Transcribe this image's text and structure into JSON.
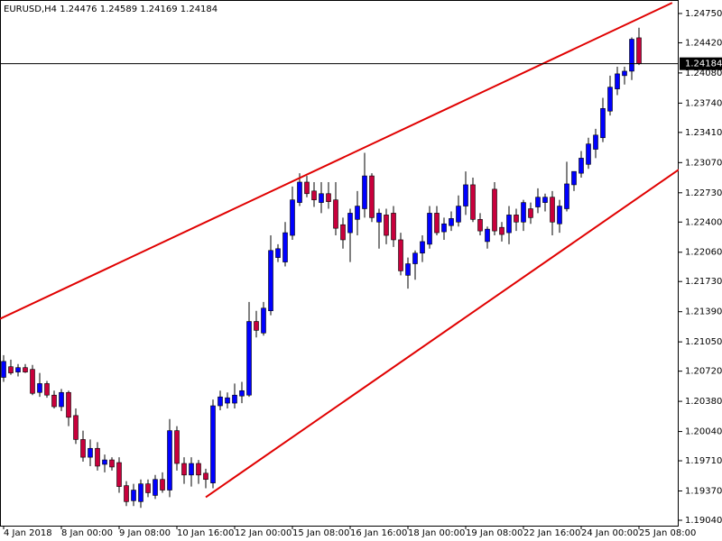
{
  "chart_data": {
    "type": "candlestick",
    "title": "EURUSD,H4 1.24476 1.24589 1.24169 1.24184",
    "categories": [
      "4 Jan 2018",
      null,
      null,
      null,
      null,
      null,
      null,
      null,
      "8 Jan 00:00",
      null,
      null,
      null,
      null,
      null,
      null,
      null,
      "9 Jan 08:00",
      null,
      null,
      null,
      null,
      null,
      null,
      null,
      "10 Jan 16:00",
      null,
      null,
      null,
      null,
      null,
      null,
      null,
      "12 Jan 00:00",
      null,
      null,
      null,
      null,
      null,
      null,
      null,
      "15 Jan 08:00",
      null,
      null,
      null,
      null,
      null,
      null,
      null,
      "16 Jan 16:00",
      null,
      null,
      null,
      null,
      null,
      null,
      null,
      "18 Jan 00:00",
      null,
      null,
      null,
      null,
      null,
      null,
      null,
      "19 Jan 08:00",
      null,
      null,
      null,
      null,
      null,
      null,
      null,
      "22 Jan 16:00",
      null,
      null,
      null,
      null,
      null,
      null,
      null,
      "24 Jan 00:00",
      null,
      null,
      null,
      null,
      null,
      null,
      null,
      "25 Jan 08:00"
    ],
    "open": [
      1.2065,
      1.2077,
      1.2071,
      1.2076,
      1.2074,
      1.2048,
      1.2058,
      1.2045,
      1.2032,
      1.2048,
      1.2022,
      1.1995,
      1.1975,
      1.1985,
      1.1967,
      1.1972,
      1.1969,
      1.1943,
      1.1926,
      1.1925,
      1.1945,
      1.1932,
      1.195,
      1.1938,
      1.2005,
      1.1968,
      1.1955,
      1.1968,
      1.1957,
      1.1946,
      1.2033,
      1.2036,
      1.2036,
      1.2044,
      1.2045,
      1.2128,
      1.2115,
      1.214,
      1.22,
      1.2195,
      1.2225,
      1.2262,
      1.2285,
      1.2275,
      1.2262,
      1.2272,
      1.2265,
      1.2237,
      1.2228,
      1.2243,
      1.2255,
      1.2292,
      1.224,
      1.2248,
      1.225,
      1.222,
      1.218,
      1.2193,
      1.2205,
      1.2215,
      1.225,
      1.2229,
      1.2236,
      1.224,
      1.2258,
      1.2282,
      1.2243,
      1.2218,
      1.2277,
      1.2234,
      1.2228,
      1.2248,
      1.224,
      1.2255,
      1.2257,
      1.2262,
      1.2268,
      1.2238,
      1.2255,
      1.2282,
      1.2295,
      1.2305,
      1.2322,
      1.2335,
      1.2365,
      1.239,
      1.2405,
      1.241,
      1.24476
    ],
    "high": [
      1.209,
      1.2085,
      1.208,
      1.208,
      1.2079,
      1.207,
      1.2061,
      1.205,
      1.2052,
      1.205,
      1.203,
      1.2005,
      1.1995,
      1.1992,
      1.1978,
      1.1975,
      1.1975,
      1.1948,
      1.1945,
      1.195,
      1.195,
      1.1955,
      1.1958,
      1.2018,
      1.201,
      1.1975,
      1.1975,
      1.1972,
      1.1962,
      1.204,
      1.205,
      1.2048,
      1.2058,
      1.206,
      1.215,
      1.214,
      1.215,
      1.2225,
      1.2215,
      1.224,
      1.228,
      1.2295,
      1.2292,
      1.2285,
      1.2285,
      1.2285,
      1.2285,
      1.2245,
      1.2255,
      1.2275,
      1.2318,
      1.2295,
      1.2255,
      1.2255,
      1.2258,
      1.2228,
      1.22,
      1.2208,
      1.2225,
      1.2258,
      1.2258,
      1.2245,
      1.2252,
      1.227,
      1.2297,
      1.229,
      1.225,
      1.2235,
      1.2285,
      1.224,
      1.2258,
      1.2255,
      1.2265,
      1.2262,
      1.2278,
      1.2272,
      1.2275,
      1.2265,
      1.2308,
      1.2295,
      1.232,
      1.2335,
      1.2345,
      1.238,
      1.2405,
      1.2415,
      1.2415,
      1.2448,
      1.24589
    ],
    "low": [
      1.206,
      1.2068,
      1.2066,
      1.207,
      1.2045,
      1.2043,
      1.2042,
      1.203,
      1.2027,
      1.201,
      1.199,
      1.197,
      1.1965,
      1.196,
      1.1958,
      1.196,
      1.1935,
      1.192,
      1.192,
      1.1918,
      1.193,
      1.1928,
      1.1935,
      1.193,
      1.196,
      1.1945,
      1.1942,
      1.1945,
      1.194,
      1.194,
      1.2028,
      1.203,
      1.203,
      1.2036,
      1.2043,
      1.211,
      1.2112,
      1.2135,
      1.2195,
      1.219,
      1.222,
      1.2258,
      1.2268,
      1.2257,
      1.225,
      1.2255,
      1.2225,
      1.221,
      1.2195,
      1.2225,
      1.2245,
      1.224,
      1.221,
      1.2215,
      1.2212,
      1.218,
      1.2165,
      1.2175,
      1.2195,
      1.221,
      1.2225,
      1.222,
      1.223,
      1.2235,
      1.2248,
      1.224,
      1.2225,
      1.221,
      1.2225,
      1.2218,
      1.2215,
      1.223,
      1.223,
      1.2238,
      1.225,
      1.2252,
      1.2225,
      1.2228,
      1.2252,
      1.2275,
      1.229,
      1.23,
      1.2312,
      1.233,
      1.236,
      1.2383,
      1.2395,
      1.24,
      1.24169
    ],
    "close": [
      1.2083,
      1.207,
      1.2076,
      1.2071,
      1.2047,
      1.2058,
      1.2045,
      1.2032,
      1.2048,
      1.202,
      1.1995,
      1.1975,
      1.1985,
      1.1965,
      1.1972,
      1.1964,
      1.1942,
      1.1925,
      1.1938,
      1.1945,
      1.1935,
      1.195,
      1.1938,
      1.2005,
      1.1968,
      1.1955,
      1.1968,
      1.1955,
      1.195,
      1.2033,
      1.2043,
      1.2042,
      1.2045,
      1.205,
      1.2128,
      1.2118,
      1.2143,
      1.2208,
      1.221,
      1.2228,
      1.2265,
      1.2285,
      1.2272,
      1.2265,
      1.2272,
      1.2263,
      1.2233,
      1.222,
      1.225,
      1.2258,
      1.2292,
      1.2245,
      1.225,
      1.2225,
      1.222,
      1.2185,
      1.2193,
      1.2205,
      1.2218,
      1.225,
      1.2228,
      1.2238,
      1.2244,
      1.2258,
      1.2282,
      1.2243,
      1.223,
      1.2232,
      1.223,
      1.2226,
      1.2248,
      1.224,
      1.2262,
      1.2245,
      1.2268,
      1.2268,
      1.224,
      1.2258,
      1.2283,
      1.2297,
      1.2312,
      1.2328,
      1.2338,
      1.2368,
      1.2392,
      1.2407,
      1.241,
      1.2446,
      1.24184
    ],
    "up_color": "#0000ff",
    "down_color": "#c8003c",
    "wick_color": "#000000",
    "current_price": 1.24184,
    "ylim": [
      1.18979,
      1.24902
    ],
    "yticks": [
      {
        "value": 1.2475,
        "label": "1.24750"
      },
      {
        "value": 1.2442,
        "label": "1.24420"
      },
      {
        "value": 1.2408,
        "label": "1.24080"
      },
      {
        "value": 1.2374,
        "label": "1.23740"
      },
      {
        "value": 1.2341,
        "label": "1.23410"
      },
      {
        "value": 1.2307,
        "label": "1.23070"
      },
      {
        "value": 1.2273,
        "label": "1.22730"
      },
      {
        "value": 1.224,
        "label": "1.22400"
      },
      {
        "value": 1.2206,
        "label": "1.22060"
      },
      {
        "value": 1.2173,
        "label": "1.21730"
      },
      {
        "value": 1.2139,
        "label": "1.21390"
      },
      {
        "value": 1.2105,
        "label": "1.21050"
      },
      {
        "value": 1.2072,
        "label": "1.20720"
      },
      {
        "value": 1.2038,
        "label": "1.20380"
      },
      {
        "value": 1.2004,
        "label": "1.20040"
      },
      {
        "value": 1.1971,
        "label": "1.19710"
      },
      {
        "value": 1.1937,
        "label": "1.19370"
      },
      {
        "value": 1.1904,
        "label": "1.19040"
      }
    ],
    "trendlines": [
      {
        "x": [
          -0.5,
          92.6
        ],
        "y": [
          1.2131,
          1.2487
        ],
        "color": "#e00000"
      },
      {
        "x": [
          28,
          93.5
        ],
        "y": [
          1.193,
          1.2299
        ],
        "color": "#e00000"
      }
    ]
  }
}
